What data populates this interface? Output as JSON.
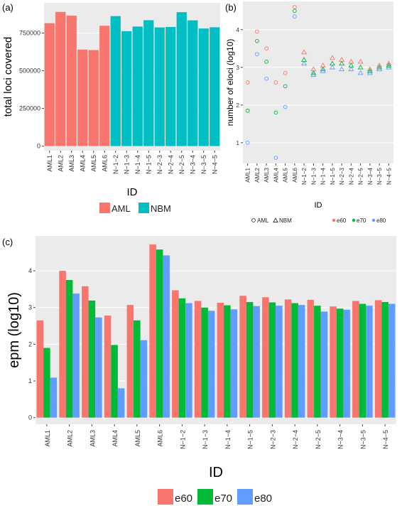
{
  "chart_data": [
    {
      "panel": "(a)",
      "type": "bar",
      "title": "",
      "xlabel": "ID",
      "ylabel": "total loci covered",
      "categories": [
        "AML1",
        "AML2",
        "AML3",
        "AML4",
        "AML5",
        "AML6",
        "N−1−2",
        "N−1−3",
        "N−1−4",
        "N−1−5",
        "N−2−3",
        "N−2−4",
        "N−2−5",
        "N−3−4",
        "N−3−5",
        "N−4−5"
      ],
      "groups": [
        "AML",
        "AML",
        "AML",
        "AML",
        "AML",
        "AML",
        "NBM",
        "NBM",
        "NBM",
        "NBM",
        "NBM",
        "NBM",
        "NBM",
        "NBM",
        "NBM",
        "NBM"
      ],
      "values": [
        815000,
        890000,
        865000,
        640000,
        637000,
        798000,
        862000,
        762000,
        793000,
        835000,
        787000,
        790000,
        888000,
        834000,
        780000,
        788000
      ],
      "ylim": [
        -30000,
        950000
      ],
      "yticks": [
        0,
        250000,
        500000,
        750000
      ],
      "ytick_labels": [
        "0",
        "250000",
        "500000",
        "750000"
      ],
      "legend": {
        "position": "bottom",
        "entries": [
          {
            "label": "AML",
            "color": "#F8766D"
          },
          {
            "label": "NBM",
            "color": "#00BFC4"
          }
        ]
      }
    },
    {
      "panel": "(b)",
      "type": "scatter",
      "title": "",
      "xlabel": "ID",
      "ylabel": "number of eloci (log10)",
      "categories": [
        "AML1",
        "AML2",
        "AML3",
        "AML4",
        "AML5",
        "AML6",
        "N−1−2",
        "N−1−3",
        "N−1−4",
        "N−1−5",
        "N−2−3",
        "N−2−4",
        "N−2−5",
        "N−3−4",
        "N−3−5",
        "N−4−5"
      ],
      "groups": [
        "AML",
        "AML",
        "AML",
        "AML",
        "AML",
        "AML",
        "NBM",
        "NBM",
        "NBM",
        "NBM",
        "NBM",
        "NBM",
        "NBM",
        "NBM",
        "NBM",
        "NBM"
      ],
      "series": [
        {
          "name": "e60",
          "color": "#F8766D",
          "values": [
            2.6,
            3.95,
            3.5,
            2.6,
            2.85,
            4.6,
            3.4,
            2.95,
            3.05,
            3.25,
            3.2,
            3.15,
            3.15,
            2.95,
            3.05,
            3.1
          ]
        },
        {
          "name": "e70",
          "color": "#00BA38",
          "values": [
            1.85,
            3.7,
            3.15,
            1.8,
            2.5,
            4.5,
            3.2,
            2.85,
            2.95,
            3.1,
            3.1,
            3.05,
            3.0,
            2.9,
            3.0,
            3.05
          ]
        },
        {
          "name": "e80",
          "color": "#619CFF",
          "values": [
            1.0,
            3.35,
            2.7,
            0.6,
            1.95,
            4.35,
            3.1,
            2.8,
            2.9,
            3.0,
            2.95,
            2.95,
            2.85,
            2.85,
            2.95,
            3.0
          ]
        }
      ],
      "ylim": [
        0.45,
        4.75
      ],
      "yticks": [
        1,
        2,
        3,
        4
      ],
      "ytick_labels": [
        "1",
        "2",
        "3",
        "4"
      ],
      "legend": {
        "position": "bottom",
        "entries": [
          {
            "label": "AML",
            "shape": "circle"
          },
          {
            "label": "NBM",
            "shape": "triangle"
          },
          {
            "label": "e60",
            "color": "#F8766D"
          },
          {
            "label": "e70",
            "color": "#00BA38"
          },
          {
            "label": "e80",
            "color": "#619CFF"
          }
        ]
      }
    },
    {
      "panel": "(c)",
      "type": "bar",
      "title": "",
      "xlabel": "ID",
      "ylabel": "epm (log10)",
      "categories": [
        "AML1",
        "AML2",
        "AML3",
        "AML4",
        "AML5",
        "AML6",
        "N−1−2",
        "N−1−3",
        "N−1−4",
        "N−1−5",
        "N−2−3",
        "N−2−4",
        "N−2−5",
        "N−3−4",
        "N−3−5",
        "N−4−5"
      ],
      "series": [
        {
          "name": "e60",
          "color": "#F8766D",
          "values": [
            2.65,
            4.0,
            3.58,
            2.78,
            3.07,
            4.72,
            3.47,
            3.18,
            3.13,
            3.32,
            3.28,
            3.22,
            3.21,
            3.03,
            3.18,
            3.2
          ]
        },
        {
          "name": "e70",
          "color": "#00BA38",
          "values": [
            1.9,
            3.75,
            3.19,
            1.98,
            2.65,
            4.58,
            3.25,
            3.0,
            3.06,
            3.15,
            3.14,
            3.12,
            3.05,
            2.97,
            3.1,
            3.15
          ]
        },
        {
          "name": "e80",
          "color": "#619CFF",
          "values": [
            1.09,
            3.38,
            2.73,
            0.8,
            2.11,
            4.42,
            3.12,
            2.91,
            2.95,
            3.04,
            3.05,
            3.07,
            2.89,
            2.94,
            3.05,
            3.1
          ]
        }
      ],
      "ylim": [
        -0.18,
        4.95
      ],
      "yticks": [
        0,
        1,
        2,
        3,
        4
      ],
      "ytick_labels": [
        "0",
        "1",
        "2",
        "3",
        "4"
      ],
      "legend": {
        "position": "bottom",
        "entries": [
          {
            "label": "e60",
            "color": "#F8766D"
          },
          {
            "label": "e70",
            "color": "#00BA38"
          },
          {
            "label": "e80",
            "color": "#619CFF"
          }
        ]
      }
    }
  ]
}
